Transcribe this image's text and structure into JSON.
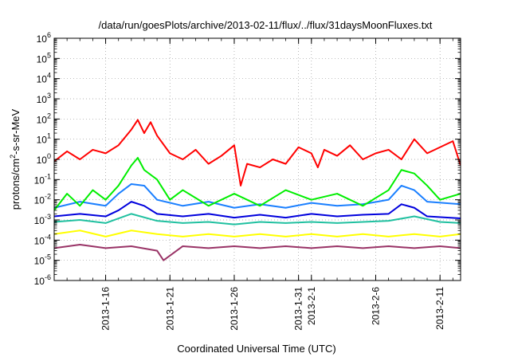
{
  "chart_data": {
    "type": "line",
    "title": "/data/run/goesPlots/archive/2013-02-11/flux/../flux/31daysMoonFluxes.txt",
    "xlabel": "Coordinated Universal Time (UTC)",
    "ylabel": {
      "base": "protons/cm",
      "sup": "2",
      "rest": "-s-sr-MeV"
    },
    "yscale": "log",
    "ylim_exponent": [
      -6,
      6
    ],
    "y_ticks": [
      {
        "exp": "-6"
      },
      {
        "exp": "-5"
      },
      {
        "exp": "-4"
      },
      {
        "exp": "-3"
      },
      {
        "exp": "-2"
      },
      {
        "exp": "-1"
      },
      {
        "exp": "0"
      },
      {
        "exp": "1"
      },
      {
        "exp": "2"
      },
      {
        "exp": "3"
      },
      {
        "exp": "4"
      },
      {
        "exp": "5"
      },
      {
        "exp": "6"
      }
    ],
    "xlim": [
      "2013-01-12",
      "2013-02-12.6"
    ],
    "x_ticks": [
      {
        "date": "2013-01-16",
        "label": "2013-1-16"
      },
      {
        "date": "2013-01-21",
        "label": "2013-1-21"
      },
      {
        "date": "2013-01-26",
        "label": "2013-1-26"
      },
      {
        "date": "2013-01-31",
        "label": "2013-1-31"
      },
      {
        "date": "2013-02-01",
        "label": "2013-2-1"
      },
      {
        "date": "2013-02-06",
        "label": "2013-2-6"
      },
      {
        "date": "2013-02-11",
        "label": "2013-2-11"
      }
    ],
    "grid": true,
    "colors": [
      "#ff0000",
      "#00ee00",
      "#1a7fff",
      "#0000dd",
      "#20c0a0",
      "#ffff00",
      "#993366"
    ],
    "series": [
      {
        "color": "#ff0000",
        "points": [
          [
            "2013-01-12",
            0.8
          ],
          [
            "2013-01-13",
            2.5
          ],
          [
            "2013-01-14",
            1.0
          ],
          [
            "2013-01-15",
            3.0
          ],
          [
            "2013-01-16",
            2.0
          ],
          [
            "2013-01-17",
            5.0
          ],
          [
            "2013-01-18",
            30
          ],
          [
            "2013-01-18.5",
            90
          ],
          [
            "2013-01-19",
            20
          ],
          [
            "2013-01-19.5",
            70
          ],
          [
            "2013-01-20",
            15
          ],
          [
            "2013-01-21",
            2.0
          ],
          [
            "2013-01-22",
            1.0
          ],
          [
            "2013-01-23",
            3.0
          ],
          [
            "2013-01-24",
            0.6
          ],
          [
            "2013-01-25",
            1.5
          ],
          [
            "2013-01-26",
            5.0
          ],
          [
            "2013-01-26.5",
            0.05
          ],
          [
            "2013-01-27",
            0.6
          ],
          [
            "2013-01-28",
            0.4
          ],
          [
            "2013-01-29",
            1.0
          ],
          [
            "2013-01-30",
            0.6
          ],
          [
            "2013-01-31",
            4.0
          ],
          [
            "2013-02-01",
            2.0
          ],
          [
            "2013-02-01.5",
            0.4
          ],
          [
            "2013-02-02",
            3.0
          ],
          [
            "2013-02-03",
            1.5
          ],
          [
            "2013-02-04",
            5.0
          ],
          [
            "2013-02-05",
            1.0
          ],
          [
            "2013-02-06",
            2.0
          ],
          [
            "2013-02-07",
            3.0
          ],
          [
            "2013-02-08",
            1.0
          ],
          [
            "2013-02-09",
            10
          ],
          [
            "2013-02-10",
            2.0
          ],
          [
            "2013-02-11",
            4.0
          ],
          [
            "2013-02-12",
            8.0
          ],
          [
            "2013-02-12.6",
            0.5
          ]
        ]
      },
      {
        "color": "#00ee00",
        "points": [
          [
            "2013-01-12",
            0.003
          ],
          [
            "2013-01-13",
            0.02
          ],
          [
            "2013-01-14",
            0.005
          ],
          [
            "2013-01-15",
            0.03
          ],
          [
            "2013-01-16",
            0.01
          ],
          [
            "2013-01-17",
            0.05
          ],
          [
            "2013-01-18",
            0.5
          ],
          [
            "2013-01-18.5",
            1.2
          ],
          [
            "2013-01-19",
            0.3
          ],
          [
            "2013-01-20",
            0.1
          ],
          [
            "2013-01-21",
            0.01
          ],
          [
            "2013-01-22",
            0.03
          ],
          [
            "2013-01-24",
            0.005
          ],
          [
            "2013-01-26",
            0.02
          ],
          [
            "2013-01-28",
            0.005
          ],
          [
            "2013-01-30",
            0.03
          ],
          [
            "2013-02-01",
            0.01
          ],
          [
            "2013-02-03",
            0.02
          ],
          [
            "2013-02-05",
            0.005
          ],
          [
            "2013-02-07",
            0.03
          ],
          [
            "2013-02-08",
            0.3
          ],
          [
            "2013-02-09",
            0.2
          ],
          [
            "2013-02-10",
            0.05
          ],
          [
            "2013-02-11",
            0.01
          ],
          [
            "2013-02-12.6",
            0.02
          ]
        ]
      },
      {
        "color": "#1a7fff",
        "points": [
          [
            "2013-01-12",
            0.004
          ],
          [
            "2013-01-14",
            0.008
          ],
          [
            "2013-01-16",
            0.005
          ],
          [
            "2013-01-17",
            0.02
          ],
          [
            "2013-01-18",
            0.06
          ],
          [
            "2013-01-19",
            0.05
          ],
          [
            "2013-01-20",
            0.01
          ],
          [
            "2013-01-22",
            0.005
          ],
          [
            "2013-01-24",
            0.008
          ],
          [
            "2013-01-26",
            0.004
          ],
          [
            "2013-01-28",
            0.006
          ],
          [
            "2013-01-30",
            0.004
          ],
          [
            "2013-02-01",
            0.007
          ],
          [
            "2013-02-03",
            0.005
          ],
          [
            "2013-02-05",
            0.006
          ],
          [
            "2013-02-07",
            0.01
          ],
          [
            "2013-02-08",
            0.05
          ],
          [
            "2013-02-09",
            0.03
          ],
          [
            "2013-02-10",
            0.008
          ],
          [
            "2013-02-12.6",
            0.006
          ]
        ]
      },
      {
        "color": "#0000dd",
        "points": [
          [
            "2013-01-12",
            0.0015
          ],
          [
            "2013-01-14",
            0.002
          ],
          [
            "2013-01-16",
            0.0015
          ],
          [
            "2013-01-17",
            0.003
          ],
          [
            "2013-01-18",
            0.008
          ],
          [
            "2013-01-19",
            0.005
          ],
          [
            "2013-01-20",
            0.002
          ],
          [
            "2013-01-22",
            0.0015
          ],
          [
            "2013-01-24",
            0.002
          ],
          [
            "2013-01-26",
            0.0013
          ],
          [
            "2013-01-28",
            0.0018
          ],
          [
            "2013-01-30",
            0.0013
          ],
          [
            "2013-02-01",
            0.002
          ],
          [
            "2013-02-03",
            0.0015
          ],
          [
            "2013-02-05",
            0.0018
          ],
          [
            "2013-02-07",
            0.002
          ],
          [
            "2013-02-08",
            0.006
          ],
          [
            "2013-02-09",
            0.004
          ],
          [
            "2013-02-10",
            0.0015
          ],
          [
            "2013-02-12.6",
            0.0012
          ]
        ]
      },
      {
        "color": "#20c0a0",
        "points": [
          [
            "2013-01-12",
            0.0008
          ],
          [
            "2013-01-14",
            0.001
          ],
          [
            "2013-01-16",
            0.0007
          ],
          [
            "2013-01-18",
            0.002
          ],
          [
            "2013-01-20",
            0.0009
          ],
          [
            "2013-01-22",
            0.0007
          ],
          [
            "2013-01-24",
            0.0008
          ],
          [
            "2013-01-26",
            0.0006
          ],
          [
            "2013-01-28",
            0.0008
          ],
          [
            "2013-01-30",
            0.0007
          ],
          [
            "2013-02-01",
            0.0008
          ],
          [
            "2013-02-03",
            0.0007
          ],
          [
            "2013-02-05",
            0.0008
          ],
          [
            "2013-02-07",
            0.0009
          ],
          [
            "2013-02-09",
            0.0015
          ],
          [
            "2013-02-11",
            0.0008
          ],
          [
            "2013-02-12.6",
            0.0007
          ]
        ]
      },
      {
        "color": "#ffff00",
        "points": [
          [
            "2013-01-12",
            0.0002
          ],
          [
            "2013-01-14",
            0.0003
          ],
          [
            "2013-01-16",
            0.00015
          ],
          [
            "2013-01-18",
            0.0003
          ],
          [
            "2013-01-20",
            0.0002
          ],
          [
            "2013-01-22",
            0.00015
          ],
          [
            "2013-01-24",
            0.0002
          ],
          [
            "2013-01-26",
            0.00015
          ],
          [
            "2013-01-28",
            0.0002
          ],
          [
            "2013-01-30",
            0.00015
          ],
          [
            "2013-02-01",
            0.0002
          ],
          [
            "2013-02-03",
            0.00015
          ],
          [
            "2013-02-05",
            0.0002
          ],
          [
            "2013-02-07",
            0.00015
          ],
          [
            "2013-02-09",
            0.0002
          ],
          [
            "2013-02-11",
            0.00015
          ],
          [
            "2013-02-12.6",
            0.0002
          ]
        ]
      },
      {
        "color": "#993366",
        "points": [
          [
            "2013-01-12",
            4e-05
          ],
          [
            "2013-01-14",
            6e-05
          ],
          [
            "2013-01-16",
            4e-05
          ],
          [
            "2013-01-18",
            5e-05
          ],
          [
            "2013-01-20",
            3e-05
          ],
          [
            "2013-01-20.5",
            1e-05
          ],
          [
            "2013-01-22",
            5e-05
          ],
          [
            "2013-01-24",
            4e-05
          ],
          [
            "2013-01-26",
            5e-05
          ],
          [
            "2013-01-28",
            4e-05
          ],
          [
            "2013-01-30",
            5e-05
          ],
          [
            "2013-02-01",
            4e-05
          ],
          [
            "2013-02-03",
            5e-05
          ],
          [
            "2013-02-05",
            4e-05
          ],
          [
            "2013-02-07",
            5e-05
          ],
          [
            "2013-02-09",
            4e-05
          ],
          [
            "2013-02-11",
            5e-05
          ],
          [
            "2013-02-12.6",
            4e-05
          ]
        ]
      }
    ]
  }
}
